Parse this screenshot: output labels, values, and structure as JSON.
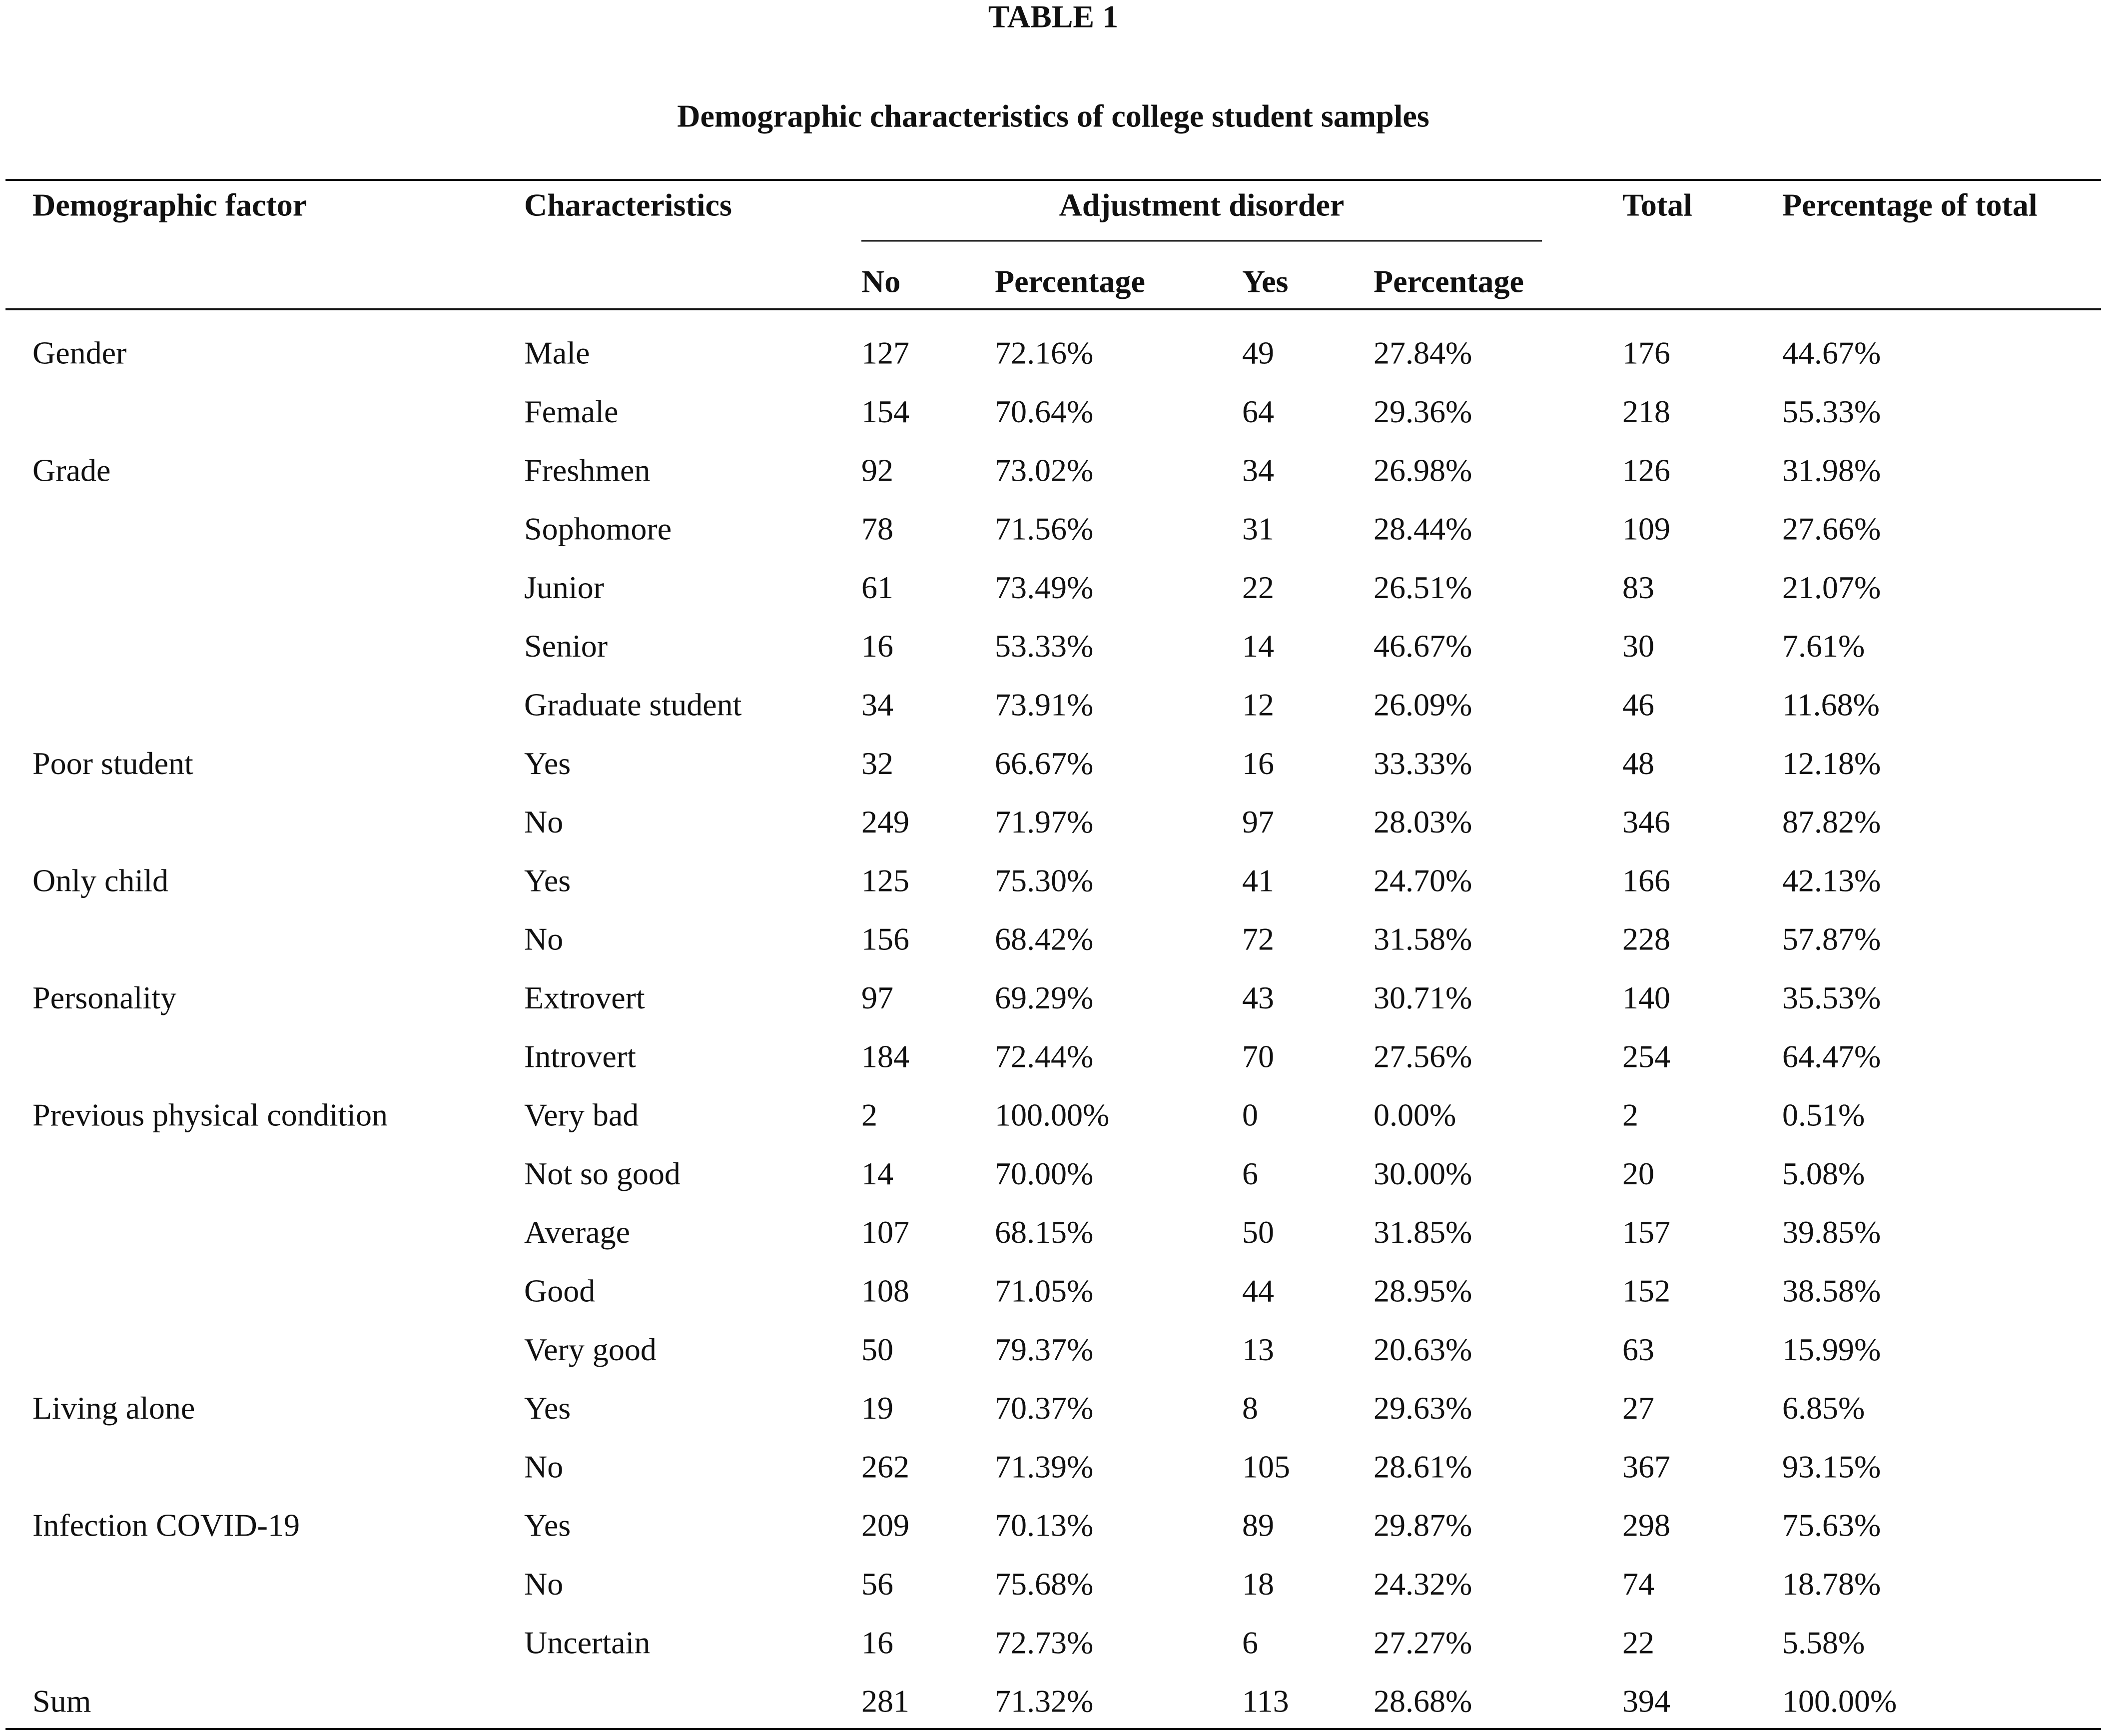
{
  "table_title": "TABLE 1",
  "caption": "Demographic characteristics of college student samples",
  "header": {
    "factor": "Demographic factor",
    "characteristics": "Characteristics",
    "group": "Adjustment disorder",
    "sub": [
      "No",
      "Percentage",
      "Yes",
      "Percentage"
    ],
    "total": "Total",
    "percent_total": "Percentage of total"
  },
  "groups": [
    {
      "factor": "Gender",
      "rows": [
        [
          "Male",
          "127",
          "72.16%",
          "49",
          "27.84%",
          "176",
          "44.67%"
        ],
        [
          "Female",
          "154",
          "70.64%",
          "64",
          "29.36%",
          "218",
          "55.33%"
        ]
      ]
    },
    {
      "factor": "Grade",
      "rows": [
        [
          "Freshmen",
          "92",
          "73.02%",
          "34",
          "26.98%",
          "126",
          "31.98%"
        ],
        [
          "Sophomore",
          "78",
          "71.56%",
          "31",
          "28.44%",
          "109",
          "27.66%"
        ],
        [
          "Junior",
          "61",
          "73.49%",
          "22",
          "26.51%",
          "83",
          "21.07%"
        ],
        [
          "Senior",
          "16",
          "53.33%",
          "14",
          "46.67%",
          "30",
          "7.61%"
        ],
        [
          "Graduate student",
          "34",
          "73.91%",
          "12",
          "26.09%",
          "46",
          "11.68%"
        ]
      ]
    },
    {
      "factor": "Poor student",
      "rows": [
        [
          "Yes",
          "32",
          "66.67%",
          "16",
          "33.33%",
          "48",
          "12.18%"
        ],
        [
          "No",
          "249",
          "71.97%",
          "97",
          "28.03%",
          "346",
          "87.82%"
        ]
      ]
    },
    {
      "factor": "Only child",
      "rows": [
        [
          "Yes",
          "125",
          "75.30%",
          "41",
          "24.70%",
          "166",
          "42.13%"
        ],
        [
          "No",
          "156",
          "68.42%",
          "72",
          "31.58%",
          "228",
          "57.87%"
        ]
      ]
    },
    {
      "factor": "Personality",
      "rows": [
        [
          "Extrovert",
          "97",
          "69.29%",
          "43",
          "30.71%",
          "140",
          "35.53%"
        ],
        [
          "Introvert",
          "184",
          "72.44%",
          "70",
          "27.56%",
          "254",
          "64.47%"
        ]
      ]
    },
    {
      "factor": "Previous physical condition",
      "rows": [
        [
          "Very bad",
          "2",
          "100.00%",
          "0",
          "0.00%",
          "2",
          "0.51%"
        ],
        [
          "Not so good",
          "14",
          "70.00%",
          "6",
          "30.00%",
          "20",
          "5.08%"
        ],
        [
          "Average",
          "107",
          "68.15%",
          "50",
          "31.85%",
          "157",
          "39.85%"
        ],
        [
          "Good",
          "108",
          "71.05%",
          "44",
          "28.95%",
          "152",
          "38.58%"
        ],
        [
          "Very good",
          "50",
          "79.37%",
          "13",
          "20.63%",
          "63",
          "15.99%"
        ]
      ]
    },
    {
      "factor": "Living alone",
      "rows": [
        [
          "Yes",
          "19",
          "70.37%",
          "8",
          "29.63%",
          "27",
          "6.85%"
        ],
        [
          "No",
          "262",
          "71.39%",
          "105",
          "28.61%",
          "367",
          "93.15%"
        ]
      ]
    },
    {
      "factor": "Infection COVID-19",
      "rows": [
        [
          "Yes",
          "209",
          "70.13%",
          "89",
          "29.87%",
          "298",
          "75.63%"
        ],
        [
          "No",
          "56",
          "75.68%",
          "18",
          "24.32%",
          "74",
          "18.78%"
        ],
        [
          "Uncertain",
          "16",
          "72.73%",
          "6",
          "27.27%",
          "22",
          "5.58%"
        ]
      ]
    }
  ],
  "sum": {
    "label": "Sum",
    "cells": [
      "281",
      "71.32%",
      "113",
      "28.68%",
      "394",
      "100.00%"
    ]
  }
}
